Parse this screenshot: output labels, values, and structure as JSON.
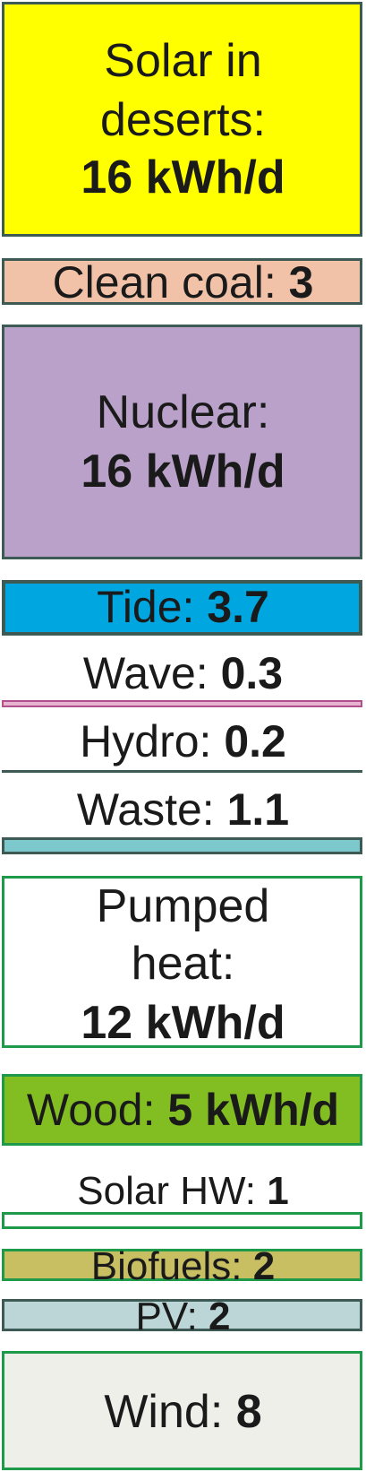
{
  "colors": {
    "solar_deserts": "#ffff00",
    "clean_coal": "#f1c2a8",
    "nuclear": "#b9a1c9",
    "tide": "#00a6e0",
    "wave_line": "#b0508c",
    "hydro_line": "#3d5a55",
    "waste": "#7cc8cc",
    "pumped_heat": "#ffffff",
    "wood": "#82bd22",
    "solar_hw": "#ffffff",
    "biofuels": "#c7bf62",
    "pv": "#bcd5d6",
    "wind": "#efefea",
    "border_dark": "#3d5a55",
    "border_green": "#1e9a4a"
  },
  "blocks": {
    "solar_deserts": {
      "label": "Solar in",
      "label2": "deserts:",
      "value": "16 kWh/d"
    },
    "clean_coal": {
      "label": "Clean coal: ",
      "value": "3"
    },
    "nuclear": {
      "label": "Nuclear:",
      "value": "16 kWh/d"
    },
    "tide": {
      "label": "Tide: ",
      "value": "3.7"
    },
    "wave": {
      "label": "Wave: ",
      "value": "0.3"
    },
    "hydro": {
      "label": "Hydro: ",
      "value": "0.2"
    },
    "waste": {
      "label": "Waste: ",
      "value": "1.1"
    },
    "pumped_heat": {
      "label": "Pumped",
      "label2": "heat:",
      "value": "12 kWh/d"
    },
    "wood": {
      "label": "Wood: ",
      "value": "5 kWh/d"
    },
    "solar_hw": {
      "label": "Solar HW: ",
      "value": "1"
    },
    "biofuels": {
      "label": "Biofuels: ",
      "value": "2"
    },
    "pv": {
      "label": "PV: ",
      "value": "2"
    },
    "wind": {
      "label": "Wind: ",
      "value": "8"
    }
  }
}
